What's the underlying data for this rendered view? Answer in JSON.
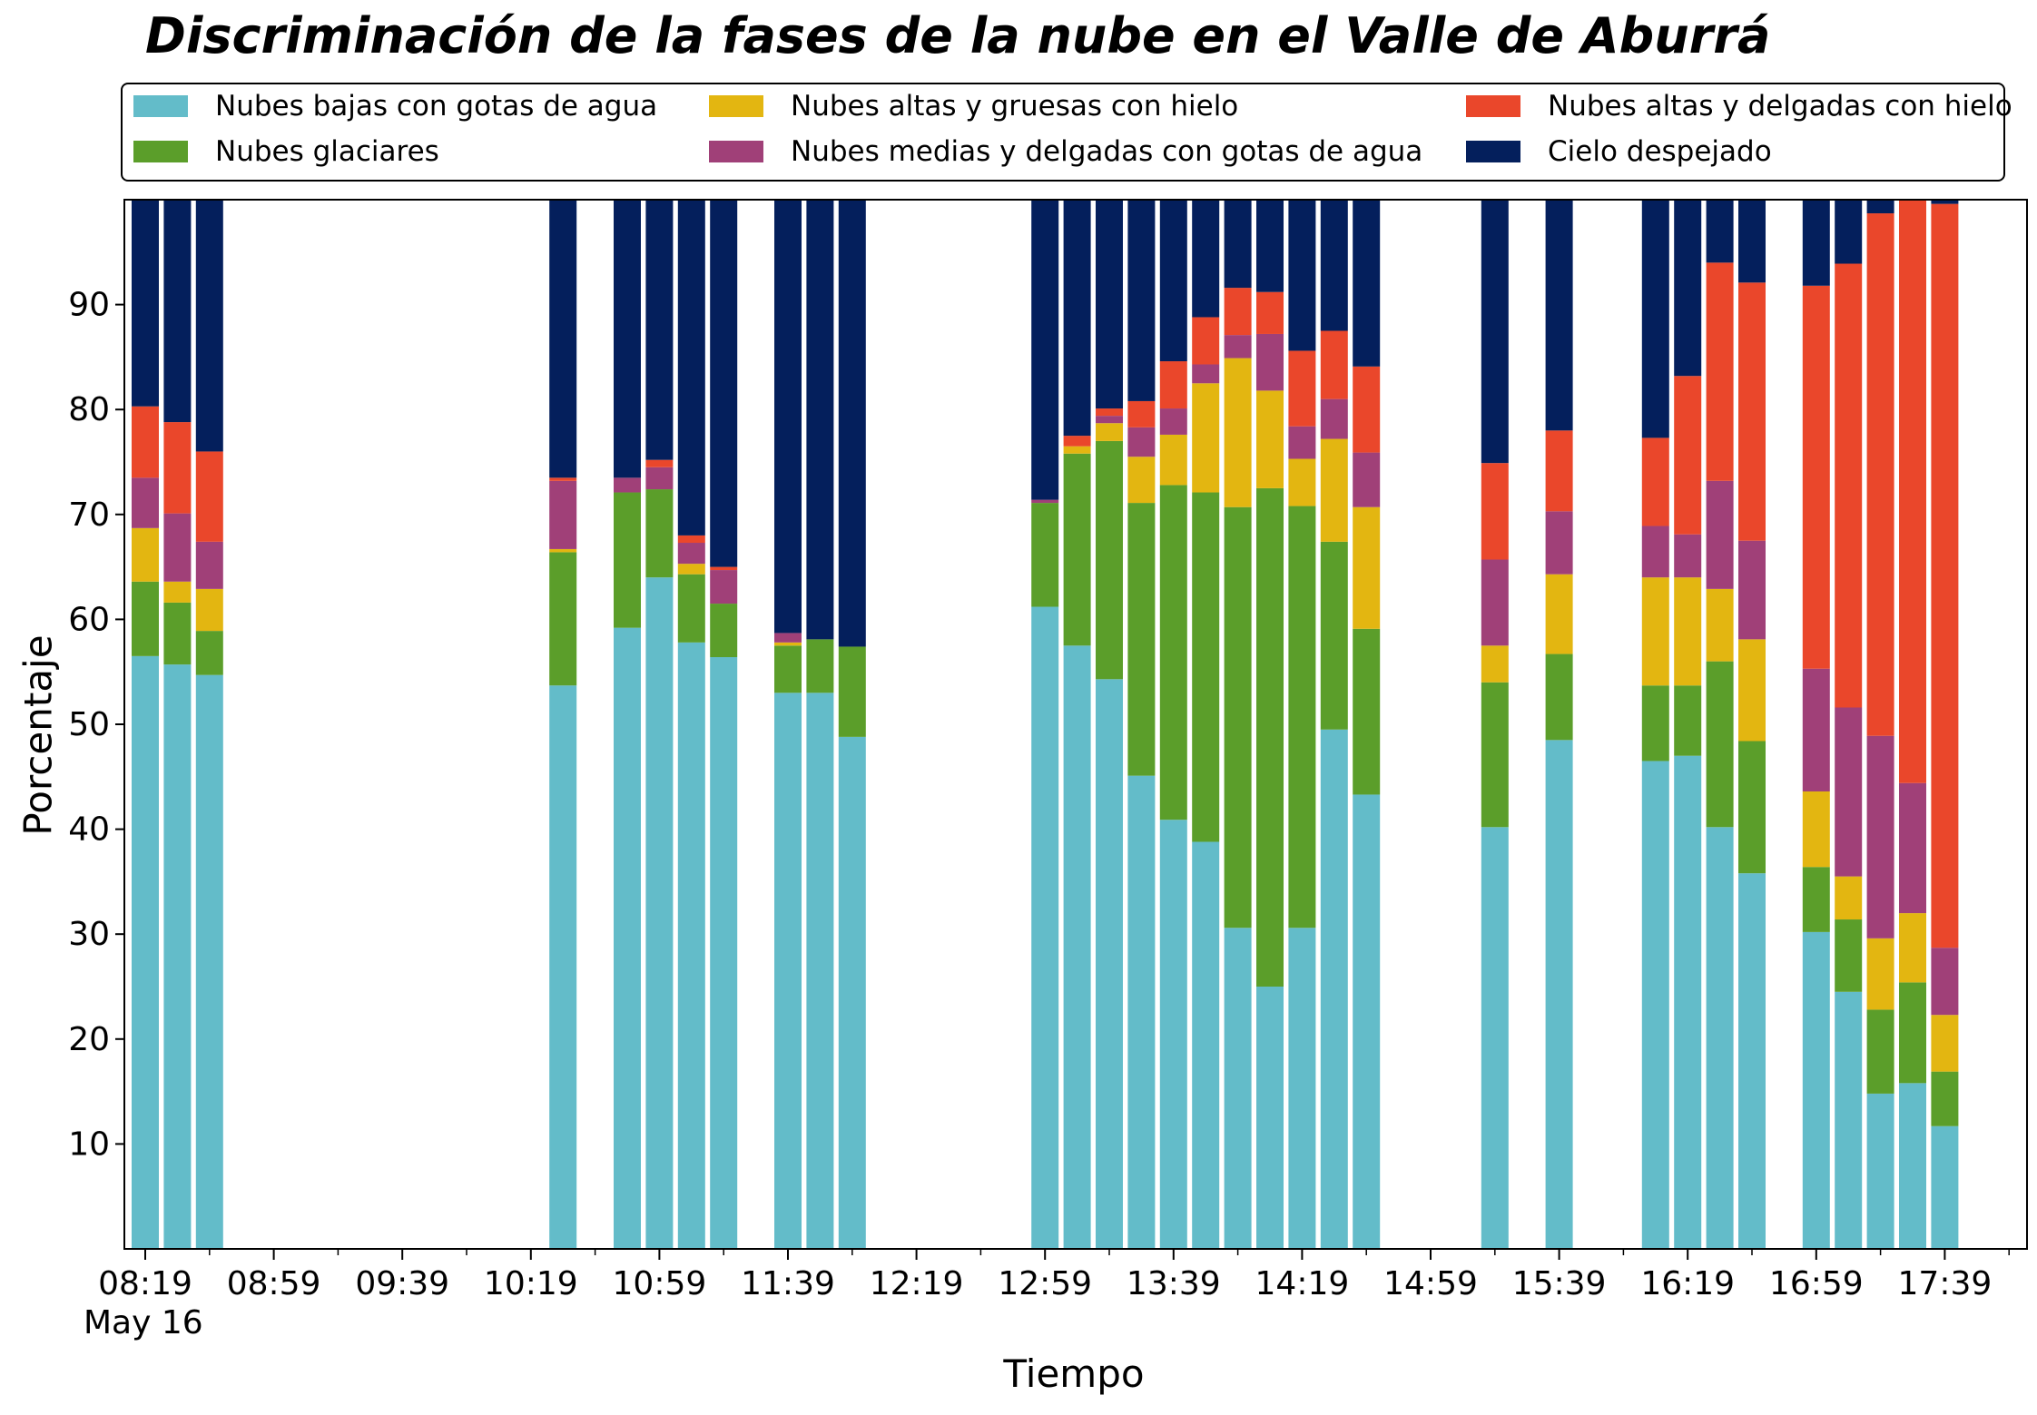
{
  "chart_data": {
    "type": "bar",
    "stacked": true,
    "title": "Discriminación de la fases de la nube en el Valle de Aburrá",
    "xlabel": "Tiempo",
    "ylabel": "Porcentaje",
    "date_label": "May 16",
    "ylim": [
      0,
      100
    ],
    "y_ticks": [
      10,
      20,
      30,
      40,
      50,
      60,
      70,
      80,
      90
    ],
    "x_ticks": [
      "08:19",
      "08:59",
      "09:39",
      "10:19",
      "10:59",
      "11:39",
      "12:19",
      "12:59",
      "13:39",
      "14:19",
      "14:59",
      "15:39",
      "16:19",
      "16:59",
      "17:39"
    ],
    "grid": false,
    "legend_position": "top",
    "categories": [
      "08:19",
      "08:29",
      "08:39",
      "10:29",
      "10:49",
      "10:59",
      "11:09",
      "11:19",
      "11:39",
      "11:49",
      "11:59",
      "12:59",
      "13:09",
      "13:19",
      "13:29",
      "13:39",
      "13:49",
      "13:59",
      "14:09",
      "14:19",
      "14:29",
      "14:39",
      "15:19",
      "15:39",
      "16:09",
      "16:19",
      "16:29",
      "16:39",
      "16:59",
      "17:09",
      "17:19",
      "17:29",
      "17:39"
    ],
    "series": [
      {
        "name": "Nubes bajas con gotas de agua",
        "color": "#63bcc9",
        "values": [
          56.5,
          55.7,
          54.7,
          53.7,
          59.2,
          64.0,
          57.8,
          56.4,
          53.0,
          53.0,
          48.8,
          61.2,
          57.5,
          54.3,
          45.1,
          40.9,
          38.8,
          30.6,
          25.0,
          30.6,
          49.5,
          43.3,
          40.2,
          48.5,
          46.5,
          47.0,
          40.2,
          35.8,
          30.2,
          24.5,
          14.8,
          15.8,
          11.7
        ]
      },
      {
        "name": "Nubes glaciares",
        "color": "#5b9e2a",
        "values": [
          7.1,
          5.9,
          4.2,
          12.7,
          12.9,
          8.4,
          6.5,
          5.1,
          4.5,
          5.1,
          8.6,
          9.9,
          18.3,
          22.7,
          26.0,
          31.9,
          33.3,
          40.1,
          47.5,
          40.2,
          17.9,
          15.8,
          13.8,
          8.2,
          7.2,
          6.7,
          15.8,
          12.6,
          6.2,
          6.9,
          8.0,
          9.6,
          5.2
        ]
      },
      {
        "name": "Nubes altas y gruesas con hielo",
        "color": "#e3b611",
        "values": [
          5.1,
          2.0,
          4.0,
          0.3,
          0,
          0,
          1.0,
          0,
          0.3,
          0,
          0,
          0,
          0.7,
          1.7,
          4.4,
          4.8,
          10.4,
          14.2,
          9.3,
          4.5,
          9.8,
          11.6,
          3.5,
          7.6,
          10.3,
          10.3,
          6.9,
          9.7,
          7.2,
          4.1,
          6.8,
          6.6,
          5.4
        ]
      },
      {
        "name": "Nubes medias y delgadas con gotas de agua",
        "color": "#a04078",
        "values": [
          4.8,
          6.5,
          4.5,
          6.5,
          1.4,
          2.1,
          2.0,
          3.2,
          0.9,
          0,
          0,
          0.3,
          0,
          0.7,
          2.8,
          2.5,
          1.8,
          2.2,
          5.4,
          3.1,
          3.8,
          5.2,
          8.2,
          6.0,
          4.9,
          4.1,
          10.3,
          9.4,
          11.7,
          16.1,
          19.3,
          12.4,
          6.4
        ]
      },
      {
        "name": "Nubes altas y delgadas con hielo",
        "color": "#ea472b",
        "values": [
          6.8,
          8.7,
          8.6,
          0.3,
          0,
          0.7,
          0.7,
          0.3,
          0,
          0,
          0,
          0,
          1.0,
          0.7,
          2.5,
          4.5,
          4.5,
          4.5,
          4.0,
          7.2,
          6.5,
          8.2,
          9.2,
          7.7,
          8.4,
          15.1,
          20.8,
          24.6,
          36.5,
          42.3,
          49.8,
          55.6,
          70.9
        ]
      },
      {
        "name": "Cielo despejado",
        "color": "#041f5c",
        "values": [
          19.7,
          21.2,
          24.0,
          26.5,
          26.5,
          24.8,
          32.0,
          35.0,
          41.3,
          41.9,
          42.6,
          28.6,
          22.5,
          20.0,
          19.2,
          15.4,
          11.2,
          8.4,
          8.8,
          14.4,
          12.5,
          15.9,
          25.1,
          22.0,
          22.7,
          16.8,
          6.0,
          7.9,
          8.2,
          6.1,
          1.3,
          0,
          0.4
        ]
      }
    ]
  }
}
